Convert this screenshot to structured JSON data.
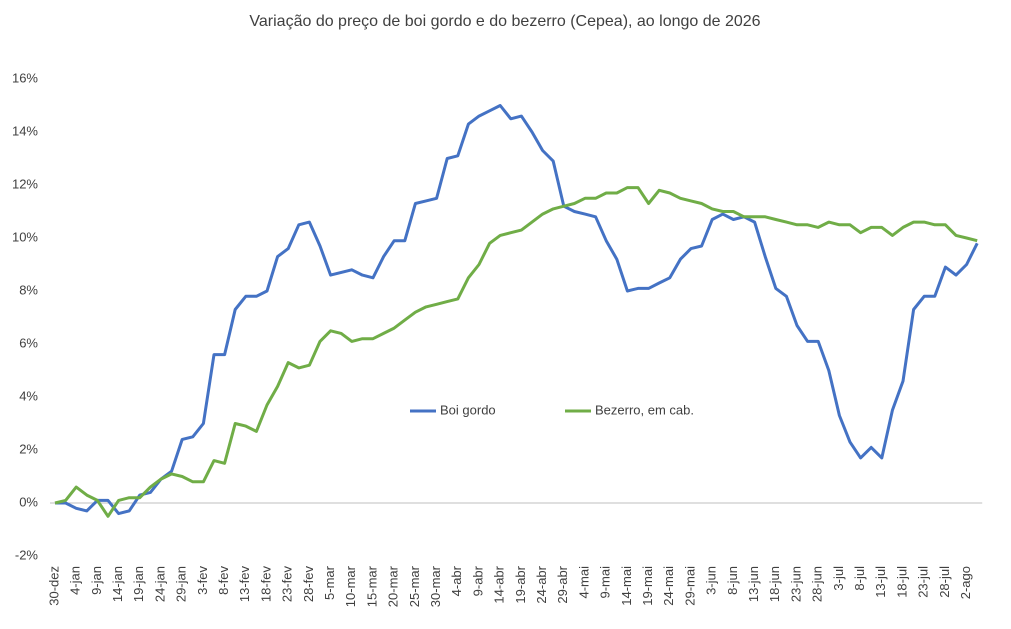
{
  "chart_data": {
    "type": "line",
    "title": "Variação do preço de boi gordo  e do bezerro (Cepea), ao longo de 2026",
    "categories": [
      "30-dez",
      null,
      "4-jan",
      null,
      "9-jan",
      null,
      "14-jan",
      null,
      "19-jan",
      null,
      "24-jan",
      null,
      "29-jan",
      null,
      "3-fev",
      null,
      "8-fev",
      null,
      "13-fev",
      null,
      "18-fev",
      null,
      "23-fev",
      null,
      "28-fev",
      null,
      "5-mar",
      null,
      "10-mar",
      null,
      "15-mar",
      null,
      "20-mar",
      null,
      "25-mar",
      null,
      "30-mar",
      null,
      "4-abr",
      null,
      "9-abr",
      null,
      "14-abr",
      null,
      "19-abr",
      null,
      "24-abr",
      null,
      "29-abr",
      null,
      "4-mai",
      null,
      "9-mai",
      null,
      "14-mai",
      null,
      "19-mai",
      null,
      "24-mai",
      null,
      "29-mai",
      null,
      "3-jun",
      null,
      "8-jun",
      null,
      "13-jun",
      null,
      "18-jun",
      null,
      "23-jun",
      null,
      "28-jun",
      null,
      "3-jul",
      null,
      "8-jul",
      null,
      "13-jul",
      null,
      "18-jul",
      null,
      "23-jul",
      null,
      "28-jul",
      null,
      "2-ago",
      null
    ],
    "series": [
      {
        "name": "Boi gordo",
        "color": "#4472c4",
        "values": [
          0,
          0,
          -0.2,
          -0.3,
          0.1,
          0.1,
          -0.4,
          -0.3,
          0.3,
          0.4,
          0.9,
          1.2,
          2.4,
          2.5,
          3.0,
          5.6,
          5.6,
          7.3,
          7.8,
          7.8,
          8.0,
          9.3,
          9.6,
          10.5,
          10.6,
          9.7,
          8.6,
          8.7,
          8.8,
          8.6,
          8.5,
          9.3,
          9.9,
          9.9,
          11.3,
          11.4,
          11.5,
          13.0,
          13.1,
          14.3,
          14.6,
          14.8,
          15.0,
          14.5,
          14.6,
          14.0,
          13.3,
          12.9,
          11.2,
          11.0,
          10.9,
          10.8,
          9.9,
          9.2,
          8.0,
          8.1,
          8.1,
          8.3,
          8.5,
          9.2,
          9.6,
          9.7,
          10.7,
          10.9,
          10.7,
          10.8,
          10.6,
          9.3,
          8.1,
          7.8,
          6.7,
          6.1,
          6.1,
          5.0,
          3.3,
          2.3,
          1.7,
          2.1,
          1.7,
          3.5,
          4.6,
          7.3,
          7.8,
          7.8,
          8.9,
          8.6,
          9.0,
          9.8
        ]
      },
      {
        "name": "Bezerro, em cab.",
        "color": "#70ad47",
        "values": [
          0,
          0.1,
          0.6,
          0.3,
          0.1,
          -0.5,
          0.1,
          0.2,
          0.2,
          0.6,
          0.9,
          1.1,
          1.0,
          0.8,
          0.8,
          1.6,
          1.5,
          3.0,
          2.9,
          2.7,
          3.7,
          4.4,
          5.3,
          5.1,
          5.2,
          6.1,
          6.5,
          6.4,
          6.1,
          6.2,
          6.2,
          6.4,
          6.6,
          6.9,
          7.2,
          7.4,
          7.5,
          7.6,
          7.7,
          8.5,
          9.0,
          9.8,
          10.1,
          10.2,
          10.3,
          10.6,
          10.9,
          11.1,
          11.2,
          11.3,
          11.5,
          11.5,
          11.7,
          11.7,
          11.9,
          11.9,
          11.3,
          11.8,
          11.7,
          11.5,
          11.4,
          11.3,
          11.1,
          11.0,
          11.0,
          10.8,
          10.8,
          10.8,
          10.7,
          10.6,
          10.5,
          10.5,
          10.4,
          10.6,
          10.5,
          10.5,
          10.2,
          10.4,
          10.4,
          10.1,
          10.4,
          10.6,
          10.6,
          10.5,
          10.5,
          10.1,
          10.0,
          9.9
        ]
      }
    ],
    "ylim": [
      -2,
      16
    ],
    "yticks": [
      {
        "value": -2,
        "label": "-2%"
      },
      {
        "value": 0,
        "label": "0%"
      },
      {
        "value": 2,
        "label": "2%"
      },
      {
        "value": 4,
        "label": "4%"
      },
      {
        "value": 6,
        "label": "6%"
      },
      {
        "value": 8,
        "label": "8%"
      },
      {
        "value": 10,
        "label": "10%"
      },
      {
        "value": 12,
        "label": "12%"
      },
      {
        "value": 14,
        "label": "14%"
      },
      {
        "value": 16,
        "label": "16%"
      }
    ],
    "grid": false,
    "legend": "center"
  }
}
